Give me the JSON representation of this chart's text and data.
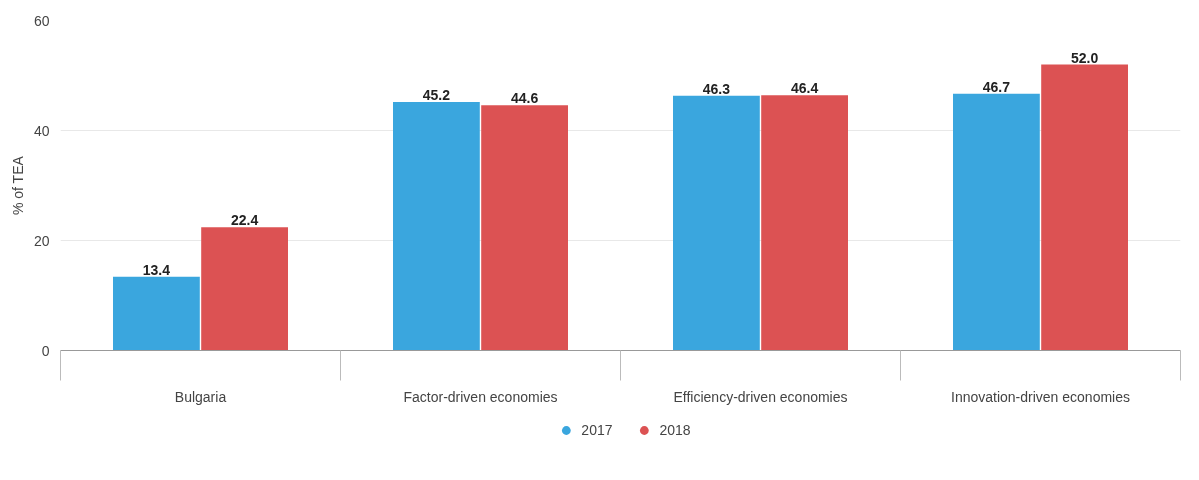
{
  "chart_data": {
    "type": "bar",
    "ylabel": "% of TEA",
    "categories": [
      "Bulgaria",
      "Factor-driven economies",
      "Efficiency-driven economies",
      "Innovation-driven economies"
    ],
    "series": [
      {
        "name": "2017",
        "color": "#3aa6de",
        "values": [
          13.4,
          45.2,
          46.3,
          46.7
        ],
        "value_labels": [
          "13.4",
          "45.2",
          "46.3",
          "46.7"
        ]
      },
      {
        "name": "2018",
        "color": "#dc5253",
        "values": [
          22.4,
          44.6,
          46.4,
          52.0
        ],
        "value_labels": [
          "22.4",
          "44.6",
          "46.4",
          "52.0"
        ]
      }
    ],
    "ylim": [
      0,
      60
    ],
    "yticks": [
      0,
      20,
      40,
      60
    ],
    "grid": "y",
    "legend": "bottom"
  }
}
